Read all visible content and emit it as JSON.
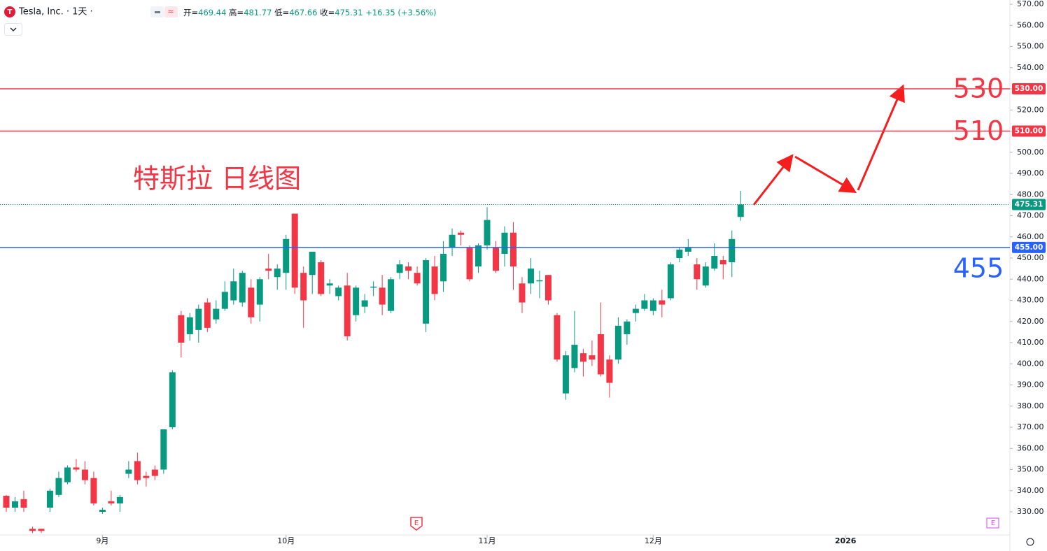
{
  "chart_data": {
    "type": "candlestick",
    "symbol": "Tesla, Inc. · 1天 ·",
    "info": [
      {
        "label": "开=",
        "value": 469.44
      },
      {
        "label": "高=",
        "value": 481.77
      },
      {
        "label": "低=",
        "value": 467.66
      },
      {
        "label": "收=",
        "value": 475.31
      }
    ],
    "change": "+16.35",
    "change_pct": "(+3.56%)",
    "annotation": "特斯拉 日线图",
    "up_color": "#089981",
    "down_color": "#f23645",
    "open": [
      337.6,
      332,
      336,
      322,
      322,
      332,
      338,
      344,
      351,
      350,
      346,
      330,
      335,
      334,
      348,
      354,
      347,
      350,
      350,
      370,
      423,
      414,
      416,
      429,
      421,
      426,
      430,
      429,
      436,
      428,
      445,
      441,
      443,
      471,
      443,
      442,
      448,
      437,
      432,
      437,
      423,
      427,
      436,
      436,
      425,
      443,
      446,
      443,
      419,
      446,
      439,
      455,
      462,
      455,
      446,
      456,
      455,
      452,
      462,
      438,
      438,
      439,
      442,
      423,
      386,
      398,
      405,
      404,
      414,
      402,
      402,
      414,
      424,
      426,
      425,
      430,
      431,
      450,
      453,
      447,
      437,
      445,
      449,
      448,
      469.44
    ],
    "high": [
      338,
      337,
      340,
      323,
      322,
      341,
      349,
      352,
      355,
      354,
      349,
      332,
      340,
      338,
      354,
      358,
      349,
      352,
      369,
      397,
      425,
      424,
      428,
      431,
      430,
      439,
      445,
      444,
      440,
      441,
      452,
      447,
      461,
      471,
      446,
      453,
      449,
      440,
      437,
      443,
      437,
      433,
      439,
      442,
      441,
      449,
      448,
      446,
      450,
      451,
      458,
      464,
      463,
      456,
      457,
      474,
      458,
      465,
      467,
      441,
      450,
      444,
      442,
      424,
      406,
      425,
      407,
      411,
      429,
      404,
      422,
      421,
      428,
      433,
      431,
      435,
      448,
      455,
      459,
      450,
      448,
      457,
      451,
      463,
      481.77
    ],
    "low": [
      330,
      330,
      330,
      320,
      320,
      330,
      337,
      343,
      349,
      343,
      333,
      329,
      333,
      330,
      346,
      343,
      342,
      345,
      348,
      369,
      403,
      411,
      410,
      415,
      419,
      425,
      428,
      427,
      419,
      420,
      440,
      435,
      435,
      433,
      417,
      433,
      432,
      433,
      430,
      411,
      420,
      424,
      432,
      423,
      424,
      440,
      440,
      437,
      415,
      430,
      434,
      451,
      456,
      439,
      443,
      454,
      443,
      446,
      435,
      424,
      433,
      431,
      428,
      401,
      383,
      396,
      394,
      399,
      394,
      384,
      400,
      409,
      420,
      425,
      423,
      422,
      430,
      448,
      451,
      435,
      436,
      444,
      440,
      441,
      467.66
    ],
    "close": [
      332,
      335,
      332,
      321,
      321,
      340,
      346,
      351,
      350,
      345,
      334,
      331,
      334,
      337,
      350,
      345,
      346,
      347,
      369,
      396,
      410,
      422,
      426,
      417,
      426,
      434,
      439,
      443,
      422,
      440,
      444,
      445,
      459,
      436,
      430,
      453,
      433,
      438,
      436,
      413,
      436,
      430,
      436.5,
      428,
      440,
      447,
      444,
      438,
      449,
      433,
      452,
      461,
      461,
      440,
      456,
      468,
      444,
      462,
      446,
      429,
      445,
      439.5,
      430,
      402,
      404,
      409,
      401,
      402,
      395,
      391,
      418,
      420,
      426,
      430,
      430,
      428,
      447,
      454,
      455,
      440,
      446,
      451,
      447,
      459,
      475.31
    ],
    "xlim": [
      -0.72,
      114.8
    ],
    "xticks": [
      {
        "value": 11,
        "label": "9月"
      },
      {
        "value": 32,
        "label": "10月"
      },
      {
        "value": 55,
        "label": "11月"
      },
      {
        "value": 74,
        "label": "12月"
      },
      {
        "value": 96,
        "label": "2026"
      }
    ],
    "ylim": [
      319.1,
      572
    ],
    "yticks": [
      {
        "value": 330,
        "label": "330.00"
      },
      {
        "value": 340,
        "label": "340.00"
      },
      {
        "value": 350,
        "label": "350.00"
      },
      {
        "value": 360,
        "label": "360.00"
      },
      {
        "value": 370,
        "label": "370.00"
      },
      {
        "value": 380,
        "label": "380.00"
      },
      {
        "value": 390,
        "label": "390.00"
      },
      {
        "value": 400,
        "label": "400.00"
      },
      {
        "value": 410,
        "label": "410.00"
      },
      {
        "value": 420,
        "label": "420.00"
      },
      {
        "value": 430,
        "label": "430.00"
      },
      {
        "value": 440,
        "label": "440.00"
      },
      {
        "value": 450,
        "label": "450.00"
      },
      {
        "value": 460,
        "label": "460.00"
      },
      {
        "value": 470,
        "label": "470.00"
      },
      {
        "value": 480,
        "label": "480.00"
      },
      {
        "value": 490,
        "label": "490.00"
      },
      {
        "value": 500,
        "label": "500.00"
      },
      {
        "value": 510,
        "label": "510.00"
      },
      {
        "value": 520,
        "label": "520.00"
      },
      {
        "value": 530,
        "label": "530.00"
      },
      {
        "value": 540,
        "label": "540.00"
      },
      {
        "value": 550,
        "label": "550.00"
      },
      {
        "value": 560,
        "label": "560.00"
      },
      {
        "value": 570,
        "label": "570.00"
      }
    ],
    "levels": [
      {
        "value": 530,
        "label": "530",
        "axis_label": "530.00",
        "color": "#f23645"
      },
      {
        "value": 510,
        "label": "510",
        "axis_label": "510.00",
        "color": "#f23645"
      },
      {
        "value": 455,
        "label": "455",
        "axis_label": "455.00",
        "color": "#2962ff"
      }
    ],
    "last_price": {
      "value": 475.31,
      "color": "#089981"
    }
  }
}
